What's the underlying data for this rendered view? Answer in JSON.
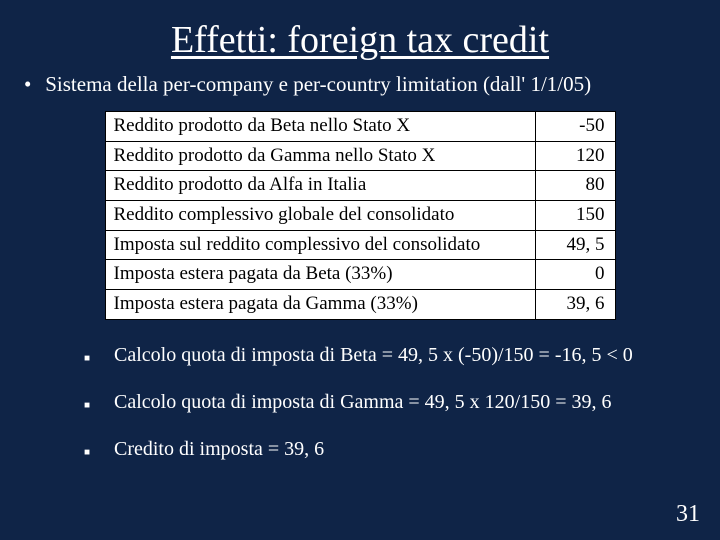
{
  "slide": {
    "title": "Effetti: foreign tax credit",
    "subtitle_bullet": "•",
    "subtitle": "Sistema della per-company e per-country limitation (dall' 1/1/05)",
    "page_number": "31",
    "background_color": "#0f2447",
    "text_color": "#ffffff",
    "title_fontsize": 38,
    "body_fontsize": 20
  },
  "table": {
    "type": "table",
    "background_color": "#ffffff",
    "border_color": "#000000",
    "text_color": "#000000",
    "fontsize": 19,
    "columns": [
      "label",
      "value"
    ],
    "col_align": [
      "left",
      "right"
    ],
    "rows": [
      {
        "label": "Reddito prodotto da Beta nello Stato X",
        "value": "-50"
      },
      {
        "label": "Reddito prodotto da Gamma nello Stato X",
        "value": "120"
      },
      {
        "label": "Reddito prodotto da Alfa in Italia",
        "value": "80"
      },
      {
        "label": "Reddito complessivo globale del consolidato",
        "value": "150"
      },
      {
        "label": "Imposta sul reddito complessivo del consolidato",
        "value": "49, 5"
      },
      {
        "label": "Imposta estera pagata da Beta (33%)",
        "value": "0"
      },
      {
        "label": "Imposta estera pagata da Gamma (33%)",
        "value": "39, 6"
      }
    ]
  },
  "bullets": {
    "marker": "■",
    "items": [
      "Calcolo quota di imposta di Beta = 49, 5 x (-50)/150 = -16, 5 < 0",
      "Calcolo quota di imposta di Gamma = 49, 5 x 120/150 = 39, 6",
      "Credito di imposta = 39, 6"
    ]
  }
}
